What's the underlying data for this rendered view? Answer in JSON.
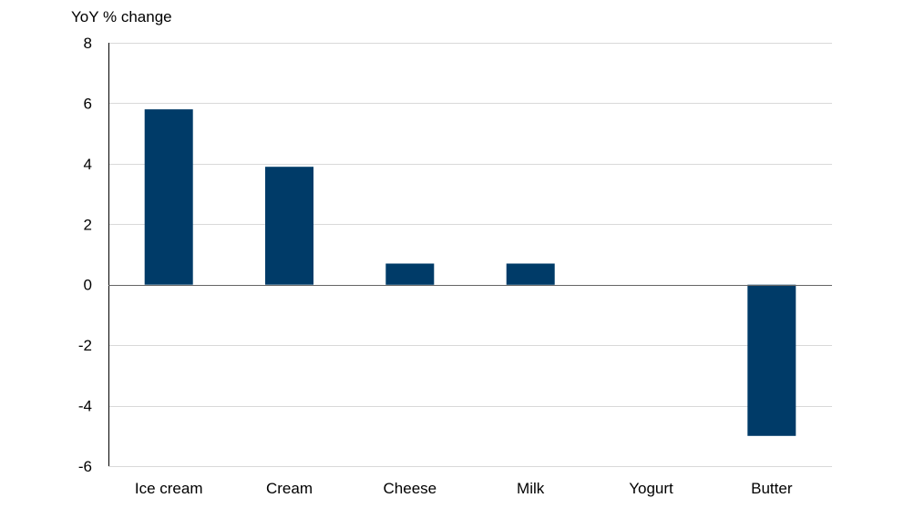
{
  "chart_data": {
    "type": "bar",
    "title": "",
    "xlabel": "",
    "ylabel": "YoY % change",
    "categories": [
      "Ice cream",
      "Cream",
      "Cheese",
      "Milk",
      "Yogurt",
      "Butter"
    ],
    "values": [
      5.8,
      3.9,
      0.7,
      0.7,
      0.0,
      -5.0
    ],
    "ylim": [
      -6,
      8
    ],
    "yticks": [
      8,
      6,
      4,
      2,
      0,
      -2,
      -4,
      -6
    ],
    "grid": true,
    "legend": "none",
    "colors": {
      "bar": "#003B68",
      "grid": "#D9D9D9",
      "axis": "#000000"
    }
  }
}
